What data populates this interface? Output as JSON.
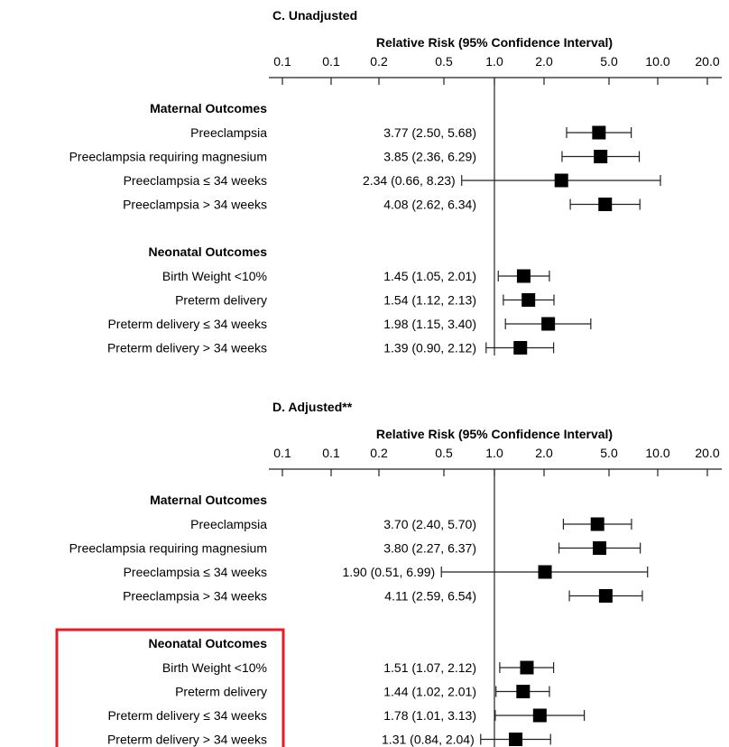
{
  "chart_data": [
    {
      "type": "forest",
      "title": "C. Unadjusted",
      "xlabel": "Relative Risk (95% Confidence Interval)",
      "x_scale": "log",
      "tick_labels": [
        "0.1",
        "0.1",
        "0.2",
        "0.5",
        "1.0",
        "2.0",
        "5.0",
        "10.0",
        "20.0"
      ],
      "reference_line": 1.0,
      "groups": [
        {
          "header": "Maternal Outcomes",
          "rows": [
            {
              "label": "Preeclampsia",
              "estimate": 3.77,
              "ci_low": 2.5,
              "ci_high": 5.68,
              "text": "3.77 (2.50, 5.68)"
            },
            {
              "label": "Preeclampsia requiring magnesium",
              "estimate": 3.85,
              "ci_low": 2.36,
              "ci_high": 6.29,
              "text": "3.85 (2.36, 6.29)"
            },
            {
              "label": "Preeclampsia ≤ 34 weeks",
              "estimate": 2.34,
              "ci_low": 0.66,
              "ci_high": 8.23,
              "text": "2.34 (0.66, 8.23)"
            },
            {
              "label": "Preeclampsia > 34 weeks",
              "estimate": 4.08,
              "ci_low": 2.62,
              "ci_high": 6.34,
              "text": "4.08 (2.62, 6.34)"
            }
          ]
        },
        {
          "header": "Neonatal Outcomes",
          "rows": [
            {
              "label": "Birth Weight <10%",
              "estimate": 1.45,
              "ci_low": 1.05,
              "ci_high": 2.01,
              "text": "1.45 (1.05, 2.01)"
            },
            {
              "label": "Preterm delivery",
              "estimate": 1.54,
              "ci_low": 1.12,
              "ci_high": 2.13,
              "text": "1.54 (1.12, 2.13)"
            },
            {
              "label": "Preterm delivery ≤ 34 weeks",
              "estimate": 1.98,
              "ci_low": 1.15,
              "ci_high": 3.4,
              "text": "1.98 (1.15, 3.40)"
            },
            {
              "label": "Preterm delivery > 34 weeks",
              "estimate": 1.39,
              "ci_low": 0.9,
              "ci_high": 2.12,
              "text": "1.39 (0.90, 2.12)"
            }
          ]
        }
      ]
    },
    {
      "type": "forest",
      "title": "D. Adjusted**",
      "xlabel": "Relative Risk (95% Confidence Interval)",
      "x_scale": "log",
      "tick_labels": [
        "0.1",
        "0.1",
        "0.2",
        "0.5",
        "1.0",
        "2.0",
        "5.0",
        "10.0",
        "20.0"
      ],
      "reference_line": 1.0,
      "highlight": {
        "group": "Neonatal Outcomes",
        "color": "#e31e24"
      },
      "groups": [
        {
          "header": "Maternal Outcomes",
          "rows": [
            {
              "label": "Preeclampsia",
              "estimate": 3.7,
              "ci_low": 2.4,
              "ci_high": 5.7,
              "text": "3.70 (2.40, 5.70)"
            },
            {
              "label": "Preeclampsia requiring magnesium",
              "estimate": 3.8,
              "ci_low": 2.27,
              "ci_high": 6.37,
              "text": "3.80 (2.27, 6.37)"
            },
            {
              "label": "Preeclampsia ≤ 34 weeks",
              "estimate": 1.9,
              "ci_low": 0.51,
              "ci_high": 6.99,
              "text": "1.90 (0.51, 6.99)"
            },
            {
              "label": "Preeclampsia > 34 weeks",
              "estimate": 4.11,
              "ci_low": 2.59,
              "ci_high": 6.54,
              "text": "4.11 (2.59, 6.54)"
            }
          ]
        },
        {
          "header": "Neonatal Outcomes",
          "rows": [
            {
              "label": "Birth Weight <10%",
              "estimate": 1.51,
              "ci_low": 1.07,
              "ci_high": 2.12,
              "text": "1.51 (1.07, 2.12)"
            },
            {
              "label": "Preterm delivery",
              "estimate": 1.44,
              "ci_low": 1.02,
              "ci_high": 2.01,
              "text": "1.44 (1.02, 2.01)"
            },
            {
              "label": "Preterm delivery ≤ 34 weeks",
              "estimate": 1.78,
              "ci_low": 1.01,
              "ci_high": 3.13,
              "text": "1.78 (1.01, 3.13)"
            },
            {
              "label": "Preterm delivery > 34 weeks",
              "estimate": 1.31,
              "ci_low": 0.84,
              "ci_high": 2.04,
              "text": "1.31 (0.84, 2.04)"
            }
          ]
        }
      ]
    }
  ]
}
